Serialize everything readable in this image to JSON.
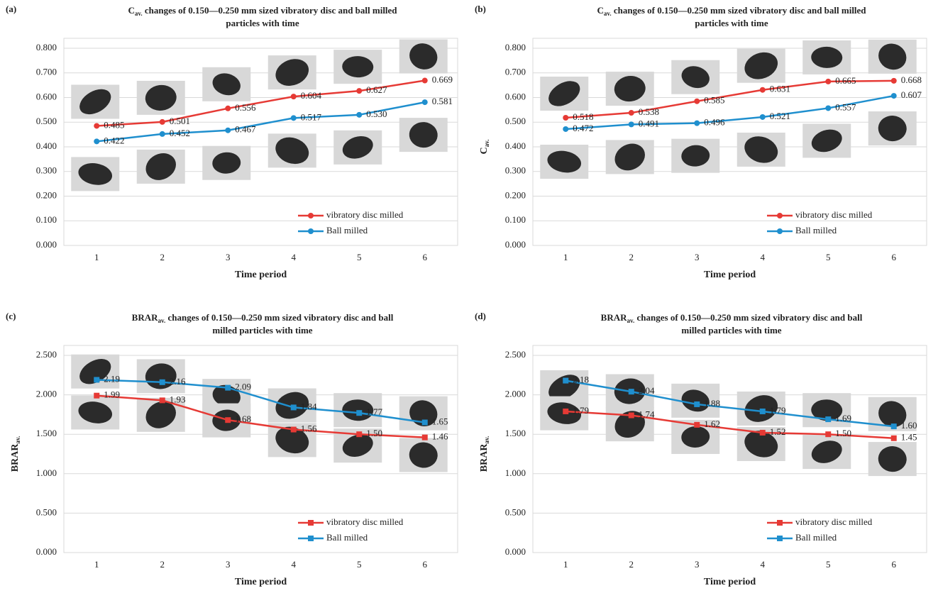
{
  "chart_data": [
    {
      "type": "line",
      "panel_label": "(a)",
      "title_symbol": "C",
      "title_subscript": "av.",
      "title_rest": " changes of 0.150—0.250 mm sized vibratory disc and ball milled",
      "title_line2": "particles with time",
      "x_label": "Time period",
      "marker": "circle",
      "grid": true,
      "categories": [
        "1",
        "2",
        "3",
        "4",
        "5",
        "6"
      ],
      "ylim": [
        0,
        0.8
      ],
      "yticks": [
        {
          "value": 0,
          "label": "0.000"
        },
        {
          "value": 0.1,
          "label": "0.100"
        },
        {
          "value": 0.2,
          "label": "0.200"
        },
        {
          "value": 0.3,
          "label": "0.300"
        },
        {
          "value": 0.4,
          "label": "0.400"
        },
        {
          "value": 0.5,
          "label": "0.500"
        },
        {
          "value": 0.6,
          "label": "0.600"
        },
        {
          "value": 0.7,
          "label": "0.700"
        },
        {
          "value": 0.8,
          "label": "0.800"
        }
      ],
      "series": [
        {
          "name": "vibratory disc  milled",
          "color": "#e63a35",
          "values": [
            0.485,
            0.501,
            0.556,
            0.604,
            0.627,
            0.669
          ],
          "value_labels": [
            "0.485",
            "0.501",
            "0.556",
            "0.604",
            "0.627",
            "0.669"
          ]
        },
        {
          "name": "Ball milled",
          "color": "#1f8fce",
          "values": [
            0.422,
            0.452,
            0.467,
            0.517,
            0.53,
            0.581
          ],
          "value_labels": [
            "0.422",
            "0.452",
            "0.467",
            "0.517",
            "0.530",
            "0.581"
          ]
        }
      ]
    },
    {
      "type": "line",
      "panel_label": "(b)",
      "title_symbol": "C",
      "title_subscript": "av.",
      "title_rest": " changes of 0.150—0.250 mm sized vibratory disc  and ball milled",
      "title_line2": "particles with time",
      "y_label": "C",
      "y_label_subscript": "av.",
      "x_label": "Time period",
      "marker": "circle",
      "grid": true,
      "categories": [
        "1",
        "2",
        "3",
        "4",
        "5",
        "6"
      ],
      "ylim": [
        0,
        0.8
      ],
      "yticks": [
        {
          "value": 0,
          "label": "0.000"
        },
        {
          "value": 0.1,
          "label": "0.100"
        },
        {
          "value": 0.2,
          "label": "0.200"
        },
        {
          "value": 0.3,
          "label": "0.300"
        },
        {
          "value": 0.4,
          "label": "0.400"
        },
        {
          "value": 0.5,
          "label": "0.500"
        },
        {
          "value": 0.6,
          "label": "0.600"
        },
        {
          "value": 0.7,
          "label": "0.700"
        },
        {
          "value": 0.8,
          "label": "0.800"
        }
      ],
      "series": [
        {
          "name": "vibratory disc  milled",
          "color": "#e63a35",
          "values": [
            0.518,
            0.538,
            0.585,
            0.631,
            0.665,
            0.668
          ],
          "value_labels": [
            "0.518",
            "0.538",
            "0.585",
            "0.631",
            "0.665",
            "0.668"
          ]
        },
        {
          "name": "Ball milled",
          "color": "#1f8fce",
          "values": [
            0.472,
            0.491,
            0.496,
            0.521,
            0.557,
            0.607
          ],
          "value_labels": [
            "0.472",
            "0.491",
            "0.496",
            "0.521",
            "0.557",
            "0.607"
          ]
        }
      ]
    },
    {
      "type": "line",
      "panel_label": "(c)",
      "title_symbol": "BRAR",
      "title_subscript": "av.",
      "title_rest": " changes of 0.150—0.250 mm sized vibratory disc and ball",
      "title_line2": "milled particles with time",
      "y_label": "BRAR",
      "y_label_subscript": "av.",
      "x_label": "Time period",
      "marker": "square",
      "grid": true,
      "categories": [
        "1",
        "2",
        "3",
        "4",
        "5",
        "6"
      ],
      "ylim": [
        0,
        2.5
      ],
      "yticks": [
        {
          "value": 0,
          "label": "0.000"
        },
        {
          "value": 0.5,
          "label": "0.500"
        },
        {
          "value": 1,
          "label": "1.000"
        },
        {
          "value": 1.5,
          "label": "1.500"
        },
        {
          "value": 2,
          "label": "2.000"
        },
        {
          "value": 2.5,
          "label": "2.500"
        }
      ],
      "series": [
        {
          "name": "vibratory disc  milled",
          "color": "#e63a35",
          "values": [
            1.99,
            1.93,
            1.68,
            1.56,
            1.5,
            1.46
          ],
          "value_labels": [
            "1.99",
            "1.93",
            "1.68",
            "1.56",
            "1.50",
            "1.46"
          ]
        },
        {
          "name": "Ball milled",
          "color": "#1f8fce",
          "values": [
            2.19,
            2.16,
            2.09,
            1.84,
            1.77,
            1.65
          ],
          "value_labels": [
            "2.19",
            "2.16",
            "2.09",
            "1.84",
            "1.77",
            "1.65"
          ]
        }
      ]
    },
    {
      "type": "line",
      "panel_label": "(d)",
      "title_symbol": "BRAR",
      "title_subscript": "av.",
      "title_rest": " changes of 0.150—0.250 mm sized vibratory disc  and ball",
      "title_line2": "milled particles with time",
      "y_label": "BRAR",
      "y_label_subscript": "av.",
      "x_label": "Time period",
      "marker": "square",
      "grid": true,
      "categories": [
        "1",
        "2",
        "3",
        "4",
        "5",
        "6"
      ],
      "ylim": [
        0,
        2.5
      ],
      "yticks": [
        {
          "value": 0,
          "label": "0.000"
        },
        {
          "value": 0.5,
          "label": "0.500"
        },
        {
          "value": 1,
          "label": "1.000"
        },
        {
          "value": 1.5,
          "label": "1.500"
        },
        {
          "value": 2,
          "label": "2.000"
        },
        {
          "value": 2.5,
          "label": "2.500"
        }
      ],
      "series": [
        {
          "name": "vibratory disc  milled",
          "color": "#e63a35",
          "values": [
            1.79,
            1.74,
            1.62,
            1.52,
            1.5,
            1.45
          ],
          "value_labels": [
            "1.79",
            "1.74",
            "1.62",
            "1.52",
            "1.50",
            "1.45"
          ]
        },
        {
          "name": "Ball milled",
          "color": "#1f8fce",
          "values": [
            2.18,
            2.04,
            1.88,
            1.79,
            1.69,
            1.6
          ],
          "value_labels": [
            "2.18",
            "2.04",
            "1.88",
            "1.79",
            "1.69",
            "1.60"
          ]
        }
      ]
    }
  ]
}
